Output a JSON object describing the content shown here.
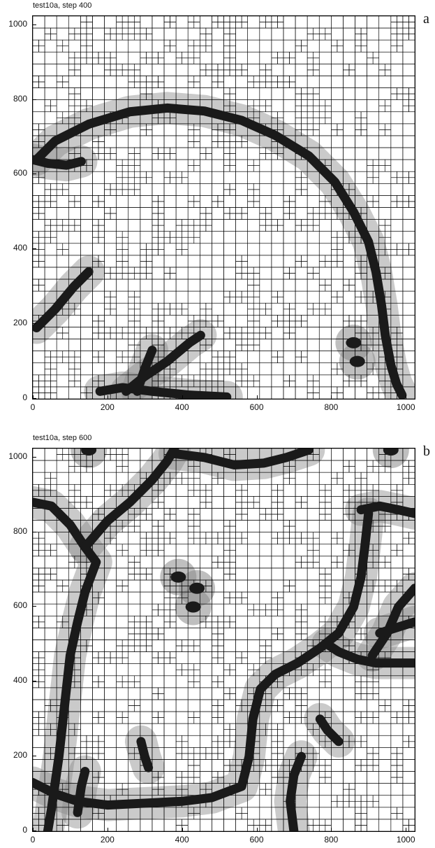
{
  "chart_data": [
    {
      "type": "heatmap",
      "title": "test10a, step 400",
      "panel_label": "a",
      "xlabel": "",
      "ylabel": "",
      "xlim": [
        0,
        1024
      ],
      "ylim": [
        0,
        1024
      ],
      "x_ticks": [
        "0",
        "200",
        "400",
        "600",
        "800",
        "1000"
      ],
      "y_ticks": [
        "0",
        "200",
        "400",
        "600",
        "800",
        "1000"
      ],
      "grid": true,
      "colors": {
        "fine_mesh": "#8a8a8a",
        "front": "#1a1a1a",
        "coarse_mesh": "#ffffff"
      },
      "features": [
        {
          "kind": "arc",
          "points": [
            [
              10,
              640
            ],
            [
              60,
              690
            ],
            [
              150,
              735
            ],
            [
              260,
              768
            ],
            [
              360,
              778
            ],
            [
              460,
              770
            ],
            [
              560,
              745
            ],
            [
              650,
              705
            ],
            [
              740,
              650
            ],
            [
              810,
              580
            ],
            [
              860,
              500
            ],
            [
              900,
              420
            ],
            [
              920,
              340
            ],
            [
              935,
              250
            ],
            [
              945,
              170
            ],
            [
              960,
              90
            ],
            [
              975,
              40
            ],
            [
              990,
              10
            ]
          ]
        },
        {
          "kind": "segment",
          "points": [
            [
              0,
              640
            ],
            [
              40,
              630
            ],
            [
              90,
              625
            ],
            [
              130,
              635
            ]
          ]
        },
        {
          "kind": "segment",
          "points": [
            [
              10,
              190
            ],
            [
              60,
              240
            ],
            [
              110,
              300
            ],
            [
              150,
              340
            ]
          ]
        },
        {
          "kind": "segment",
          "points": [
            [
              250,
              20
            ],
            [
              300,
              60
            ],
            [
              360,
              100
            ],
            [
              420,
              150
            ],
            [
              450,
              170
            ]
          ]
        },
        {
          "kind": "segment",
          "points": [
            [
              180,
              20
            ],
            [
              240,
              30
            ],
            [
              320,
              20
            ],
            [
              420,
              10
            ],
            [
              520,
              5
            ]
          ]
        },
        {
          "kind": "segment",
          "points": [
            [
              280,
              20
            ],
            [
              300,
              80
            ],
            [
              320,
              130
            ]
          ]
        },
        {
          "kind": "blob",
          "points": [
            [
              860,
              150
            ]
          ]
        },
        {
          "kind": "blob",
          "points": [
            [
              870,
              100
            ]
          ]
        }
      ]
    },
    {
      "type": "heatmap",
      "title": "test10a, step 600",
      "panel_label": "b",
      "xlabel": "",
      "ylabel": "",
      "xlim": [
        0,
        1024
      ],
      "ylim": [
        0,
        1024
      ],
      "x_ticks": [
        "0",
        "200",
        "400",
        "600",
        "800",
        "1000"
      ],
      "y_ticks": [
        "0",
        "200",
        "400",
        "600",
        "800",
        "1000"
      ],
      "grid": true,
      "colors": {
        "fine_mesh": "#8a8a8a",
        "front": "#1a1a1a",
        "coarse_mesh": "#ffffff"
      },
      "features": [
        {
          "kind": "segment",
          "points": [
            [
              0,
              880
            ],
            [
              50,
              870
            ],
            [
              100,
              820
            ],
            [
              140,
              760
            ],
            [
              170,
              720
            ],
            [
              140,
              640
            ],
            [
              120,
              560
            ],
            [
              100,
              470
            ],
            [
              90,
              380
            ],
            [
              80,
              290
            ],
            [
              70,
              200
            ],
            [
              60,
              130
            ],
            [
              50,
              60
            ],
            [
              40,
              0
            ]
          ]
        },
        {
          "kind": "segment",
          "points": [
            [
              140,
              760
            ],
            [
              200,
              830
            ],
            [
              260,
              880
            ],
            [
              320,
              940
            ],
            [
              360,
              990
            ],
            [
              380,
              1024
            ]
          ]
        },
        {
          "kind": "segment",
          "points": [
            [
              380,
              1010
            ],
            [
              460,
              1000
            ],
            [
              540,
              980
            ],
            [
              620,
              985
            ],
            [
              680,
              1000
            ],
            [
              740,
              1020
            ]
          ]
        },
        {
          "kind": "segment",
          "points": [
            [
              0,
              130
            ],
            [
              60,
              100
            ],
            [
              120,
              80
            ],
            [
              200,
              70
            ],
            [
              300,
              75
            ],
            [
              400,
              80
            ],
            [
              480,
              90
            ],
            [
              560,
              120
            ],
            [
              580,
              200
            ],
            [
              590,
              300
            ],
            [
              610,
              380
            ],
            [
              650,
              420
            ],
            [
              710,
              450
            ],
            [
              770,
              490
            ],
            [
              820,
              530
            ],
            [
              860,
              600
            ],
            [
              880,
              680
            ],
            [
              890,
              760
            ],
            [
              900,
              850
            ]
          ]
        },
        {
          "kind": "segment",
          "points": [
            [
              880,
              860
            ],
            [
              930,
              870
            ],
            [
              980,
              860
            ],
            [
              1024,
              850
            ]
          ]
        },
        {
          "kind": "segment",
          "points": [
            [
              790,
              500
            ],
            [
              820,
              480
            ],
            [
              870,
              460
            ],
            [
              920,
              450
            ],
            [
              1024,
              450
            ]
          ]
        },
        {
          "kind": "segment",
          "points": [
            [
              700,
              0
            ],
            [
              690,
              80
            ],
            [
              700,
              150
            ],
            [
              720,
              200
            ]
          ]
        },
        {
          "kind": "segment",
          "points": [
            [
              910,
              470
            ],
            [
              950,
              530
            ],
            [
              980,
              600
            ],
            [
              1024,
              650
            ]
          ]
        },
        {
          "kind": "segment",
          "points": [
            [
              930,
              530
            ],
            [
              960,
              540
            ],
            [
              1024,
              560
            ]
          ]
        },
        {
          "kind": "blob",
          "points": [
            [
              440,
              650
            ]
          ]
        },
        {
          "kind": "blob",
          "points": [
            [
              430,
              600
            ]
          ]
        },
        {
          "kind": "blob",
          "points": [
            [
              390,
              680
            ]
          ]
        },
        {
          "kind": "segment",
          "points": [
            [
              290,
              240
            ],
            [
              300,
              200
            ],
            [
              310,
              170
            ]
          ]
        },
        {
          "kind": "segment",
          "points": [
            [
              770,
              300
            ],
            [
              790,
              270
            ],
            [
              820,
              240
            ]
          ]
        },
        {
          "kind": "blob",
          "points": [
            [
              150,
              1020
            ]
          ]
        },
        {
          "kind": "blob",
          "points": [
            [
              960,
              1020
            ]
          ]
        },
        {
          "kind": "segment",
          "points": [
            [
              120,
              50
            ],
            [
              130,
              120
            ],
            [
              140,
              160
            ]
          ]
        }
      ]
    }
  ]
}
